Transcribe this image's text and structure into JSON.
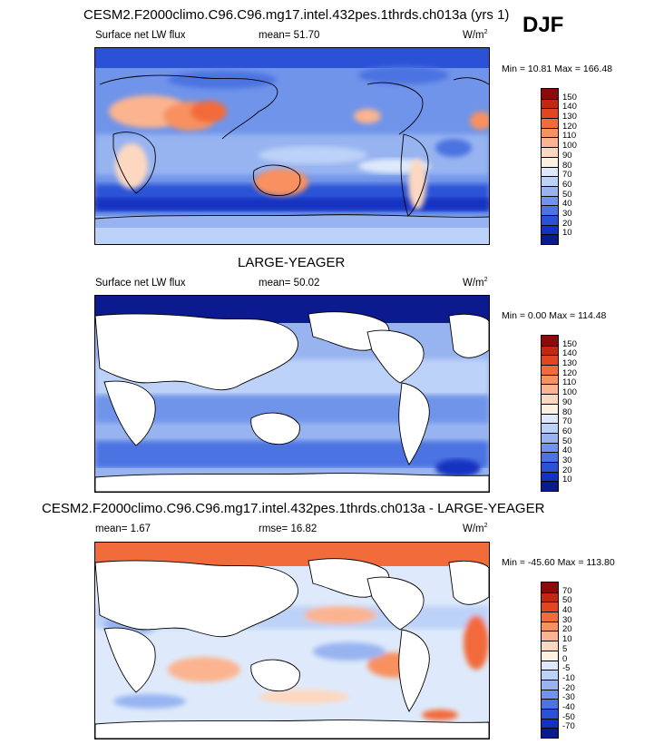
{
  "season": "DJF",
  "panels": [
    {
      "title": "CESM2.F2000climo.C96.C96.mg17.intel.432pes.1thrds.ch013a (yrs 1)",
      "left_label": "Surface net LW flux",
      "center_label": "mean=  51.70",
      "units": "W/m",
      "units_sup": "2",
      "min_max": "Min =  10.81 Max = 166.48",
      "colorbar": {
        "labels": [
          "150",
          "140",
          "130",
          "120",
          "110",
          "100",
          "90",
          "80",
          "70",
          "60",
          "50",
          "40",
          "30",
          "20",
          "10"
        ],
        "colors": [
          "#8c0a0a",
          "#c52712",
          "#e2461f",
          "#f26b3a",
          "#f8915e",
          "#fbb48f",
          "#fdd8c0",
          "#fdf0e0",
          "#deeafb",
          "#bdd2f8",
          "#97b4f1",
          "#7094ea",
          "#4b73e1",
          "#2b52d6",
          "#1432c0",
          "#0b1a8e"
        ]
      }
    },
    {
      "title": "LARGE-YEAGER",
      "left_label": "Surface net LW flux",
      "center_label": "mean=  50.02",
      "units": "W/m",
      "units_sup": "2",
      "min_max": "Min =   0.00 Max = 114.48",
      "colorbar": {
        "labels": [
          "150",
          "140",
          "130",
          "120",
          "110",
          "100",
          "90",
          "80",
          "70",
          "60",
          "50",
          "40",
          "30",
          "20",
          "10"
        ],
        "colors": [
          "#8c0a0a",
          "#c52712",
          "#e2461f",
          "#f26b3a",
          "#f8915e",
          "#fbb48f",
          "#fdd8c0",
          "#fdf0e0",
          "#deeafb",
          "#bdd2f8",
          "#97b4f1",
          "#7094ea",
          "#4b73e1",
          "#2b52d6",
          "#1432c0",
          "#0b1a8e"
        ]
      }
    },
    {
      "title": "CESM2.F2000climo.C96.C96.mg17.intel.432pes.1thrds.ch013a - LARGE-YEAGER",
      "left_label": "mean=   1.67",
      "center_label": "rmse=  16.82",
      "units": "W/m",
      "units_sup": "2",
      "min_max": "Min = -45.60 Max = 113.80",
      "colorbar": {
        "labels": [
          "70",
          "50",
          "40",
          "30",
          "20",
          "10",
          "5",
          "0",
          "-5",
          "-10",
          "-20",
          "-30",
          "-40",
          "-50",
          "-70"
        ],
        "colors": [
          "#8c0a0a",
          "#c52712",
          "#e2461f",
          "#f26b3a",
          "#f8915e",
          "#fbb48f",
          "#fdd8c0",
          "#fdf0e0",
          "#deeafb",
          "#bdd2f8",
          "#97b4f1",
          "#7094ea",
          "#4b73e1",
          "#2b52d6",
          "#1432c0",
          "#0b1a8e"
        ]
      }
    }
  ]
}
